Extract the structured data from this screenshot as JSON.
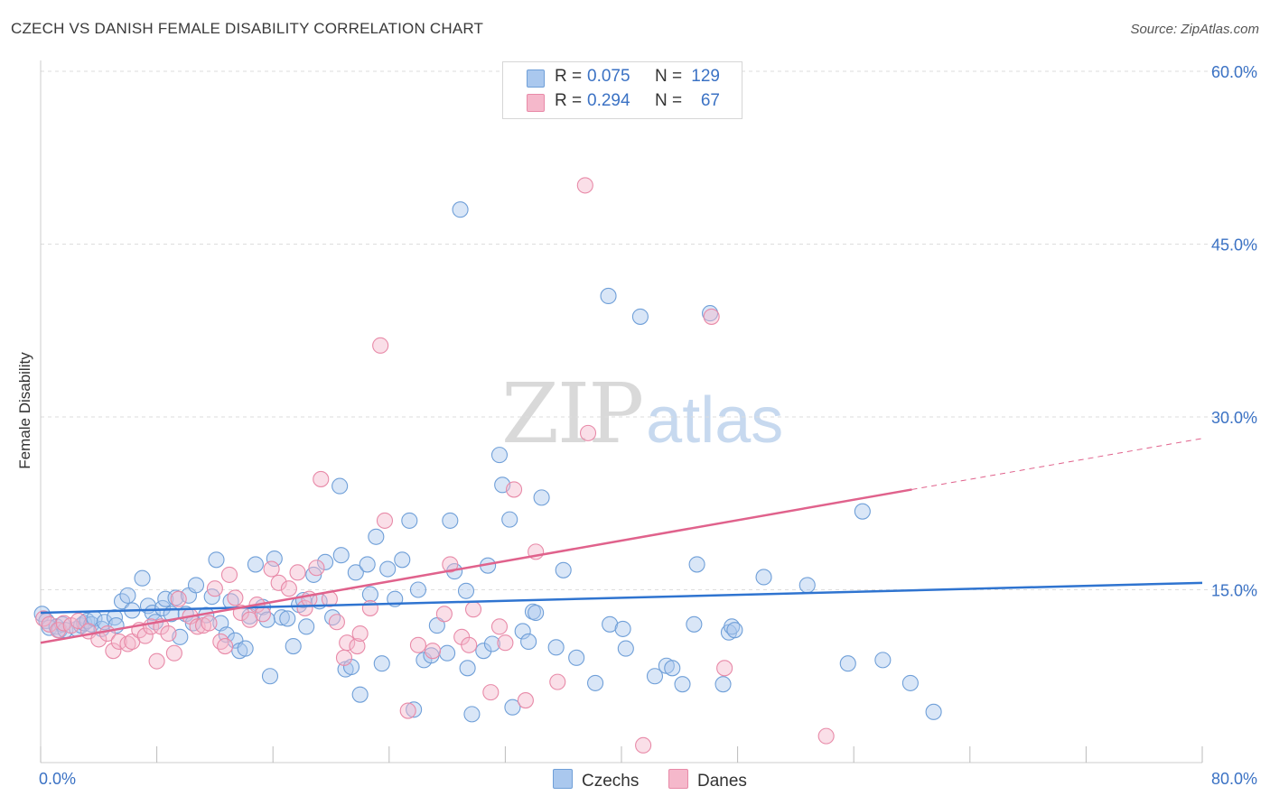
{
  "title": "CZECH VS DANISH FEMALE DISABILITY CORRELATION CHART",
  "source": "Source: ZipAtlas.com",
  "watermark": {
    "part1": "ZIP",
    "part2": "atlas"
  },
  "stats": [
    {
      "r_label": "R =",
      "r_value": "0.075",
      "n_label": "N =",
      "n_value": "129",
      "color": "#aac8ee"
    },
    {
      "r_label": "R =",
      "r_value": "0.294",
      "n_label": "N =",
      "n_value": "67",
      "color": "#f5b8cb"
    }
  ],
  "legend": [
    {
      "label": "Czechs",
      "color": "#aac8ee"
    },
    {
      "label": "Danes",
      "color": "#f5b8cb"
    }
  ],
  "colors": {
    "blue_fill": "#aac8ee",
    "blue_stroke": "#6f9fd8",
    "blue_line": "#2f74d0",
    "pink_fill": "#f5b8cb",
    "pink_stroke": "#e88aa8",
    "pink_line": "#e0628c",
    "tick_label": "#3b72c4",
    "grid": "#dddddd"
  },
  "chart_data": {
    "type": "scatter",
    "title": "CZECH VS DANISH FEMALE DISABILITY CORRELATION CHART",
    "xlabel": "",
    "ylabel": "Female Disability",
    "xlim": [
      0,
      80
    ],
    "ylim": [
      0,
      60
    ],
    "x_tick_labels": [
      {
        "value": 0,
        "label": "0.0%"
      },
      {
        "value": 80,
        "label": "80.0%"
      }
    ],
    "y_tick_labels": [
      {
        "value": 15,
        "label": "15.0%"
      },
      {
        "value": 30,
        "label": "30.0%"
      },
      {
        "value": 45,
        "label": "45.0%"
      },
      {
        "value": 60,
        "label": "60.0%"
      }
    ],
    "grid": "horizontal dashed",
    "series": [
      {
        "name": "Czechs",
        "trend": {
          "x": [
            0,
            80
          ],
          "y": [
            13.0,
            15.6
          ]
        },
        "points": [
          [
            0.1,
            12.9
          ],
          [
            0.4,
            12.3
          ],
          [
            0.6,
            11.7
          ],
          [
            1.1,
            11.8
          ],
          [
            1.3,
            11.5
          ],
          [
            1.5,
            12.0
          ],
          [
            1.7,
            11.5
          ],
          [
            2.5,
            11.6
          ],
          [
            2.8,
            11.9
          ],
          [
            3.0,
            12.1
          ],
          [
            3.2,
            12.3
          ],
          [
            3.5,
            12.0
          ],
          [
            3.7,
            12.5
          ],
          [
            4.2,
            11.6
          ],
          [
            4.4,
            12.2
          ],
          [
            5.1,
            12.6
          ],
          [
            5.2,
            11.9
          ],
          [
            5.6,
            14.0
          ],
          [
            6.0,
            14.5
          ],
          [
            6.3,
            13.2
          ],
          [
            7.0,
            16.0
          ],
          [
            7.4,
            13.6
          ],
          [
            7.7,
            13.0
          ],
          [
            7.9,
            12.2
          ],
          [
            8.4,
            13.4
          ],
          [
            8.6,
            14.2
          ],
          [
            9.0,
            12.9
          ],
          [
            9.3,
            14.3
          ],
          [
            9.6,
            10.9
          ],
          [
            10.0,
            12.9
          ],
          [
            10.2,
            14.5
          ],
          [
            10.5,
            12.1
          ],
          [
            10.7,
            15.4
          ],
          [
            11.4,
            12.8
          ],
          [
            11.8,
            14.4
          ],
          [
            12.1,
            17.6
          ],
          [
            12.4,
            12.1
          ],
          [
            12.8,
            11.1
          ],
          [
            13.1,
            14.0
          ],
          [
            13.4,
            10.6
          ],
          [
            13.7,
            9.7
          ],
          [
            14.1,
            9.9
          ],
          [
            14.4,
            12.7
          ],
          [
            14.8,
            17.2
          ],
          [
            15.3,
            13.5
          ],
          [
            15.6,
            12.4
          ],
          [
            15.8,
            7.5
          ],
          [
            16.1,
            17.7
          ],
          [
            16.6,
            12.6
          ],
          [
            17.0,
            12.5
          ],
          [
            17.4,
            10.1
          ],
          [
            17.8,
            13.7
          ],
          [
            18.1,
            14.1
          ],
          [
            18.3,
            11.8
          ],
          [
            18.8,
            16.3
          ],
          [
            19.2,
            14.0
          ],
          [
            19.6,
            17.4
          ],
          [
            20.1,
            12.6
          ],
          [
            20.6,
            24.0
          ],
          [
            20.7,
            18.0
          ],
          [
            21.0,
            8.1
          ],
          [
            21.4,
            8.3
          ],
          [
            21.7,
            16.5
          ],
          [
            22.0,
            5.9
          ],
          [
            22.5,
            17.2
          ],
          [
            22.7,
            14.6
          ],
          [
            23.1,
            19.6
          ],
          [
            23.5,
            8.6
          ],
          [
            23.9,
            16.8
          ],
          [
            24.4,
            14.2
          ],
          [
            24.9,
            17.6
          ],
          [
            25.4,
            21.0
          ],
          [
            25.7,
            4.6
          ],
          [
            26.0,
            15.0
          ],
          [
            26.4,
            8.9
          ],
          [
            26.9,
            9.3
          ],
          [
            27.3,
            11.9
          ],
          [
            28.0,
            9.5
          ],
          [
            28.2,
            21.0
          ],
          [
            28.5,
            16.6
          ],
          [
            28.9,
            48.0
          ],
          [
            29.3,
            14.9
          ],
          [
            29.4,
            8.2
          ],
          [
            29.7,
            4.2
          ],
          [
            30.5,
            9.7
          ],
          [
            30.8,
            17.1
          ],
          [
            31.1,
            10.3
          ],
          [
            31.6,
            26.7
          ],
          [
            31.8,
            24.1
          ],
          [
            32.3,
            21.1
          ],
          [
            32.5,
            4.8
          ],
          [
            33.2,
            11.4
          ],
          [
            33.6,
            10.5
          ],
          [
            33.9,
            13.1
          ],
          [
            34.1,
            13.0
          ],
          [
            34.5,
            23.0
          ],
          [
            35.5,
            10.0
          ],
          [
            36.0,
            16.7
          ],
          [
            36.9,
            9.1
          ],
          [
            38.2,
            6.9
          ],
          [
            39.1,
            40.5
          ],
          [
            39.2,
            12.0
          ],
          [
            40.1,
            11.6
          ],
          [
            40.3,
            9.9
          ],
          [
            41.3,
            38.7
          ],
          [
            42.3,
            7.5
          ],
          [
            43.1,
            8.4
          ],
          [
            43.5,
            8.2
          ],
          [
            44.2,
            6.8
          ],
          [
            45.0,
            12.0
          ],
          [
            45.2,
            17.2
          ],
          [
            46.1,
            39.0
          ],
          [
            47.0,
            6.8
          ],
          [
            47.4,
            11.3
          ],
          [
            47.6,
            11.8
          ],
          [
            47.8,
            11.5
          ],
          [
            49.8,
            16.1
          ],
          [
            52.8,
            15.4
          ],
          [
            55.6,
            8.6
          ],
          [
            56.6,
            21.8
          ],
          [
            58.0,
            8.9
          ],
          [
            59.9,
            6.9
          ],
          [
            61.5,
            4.4
          ]
        ]
      },
      {
        "name": "Danes",
        "trend": {
          "x": [
            0,
            60
          ],
          "y": [
            10.4,
            23.7
          ]
        },
        "points": [
          [
            0.2,
            12.5
          ],
          [
            0.6,
            12.0
          ],
          [
            1.2,
            11.5
          ],
          [
            1.6,
            12.1
          ],
          [
            2.1,
            11.9
          ],
          [
            2.6,
            12.3
          ],
          [
            3.3,
            11.4
          ],
          [
            4.0,
            10.7
          ],
          [
            4.6,
            11.2
          ],
          [
            5.0,
            9.7
          ],
          [
            5.4,
            10.5
          ],
          [
            6.0,
            10.3
          ],
          [
            6.3,
            10.5
          ],
          [
            6.8,
            11.5
          ],
          [
            7.2,
            11.0
          ],
          [
            7.6,
            11.8
          ],
          [
            8.0,
            8.8
          ],
          [
            8.3,
            11.8
          ],
          [
            8.8,
            11.2
          ],
          [
            9.2,
            9.5
          ],
          [
            9.5,
            14.2
          ],
          [
            10.3,
            12.7
          ],
          [
            10.8,
            11.8
          ],
          [
            11.2,
            11.9
          ],
          [
            11.6,
            12.1
          ],
          [
            12.0,
            15.1
          ],
          [
            12.4,
            10.5
          ],
          [
            12.7,
            10.1
          ],
          [
            13.0,
            16.3
          ],
          [
            13.4,
            14.3
          ],
          [
            13.8,
            13.0
          ],
          [
            14.4,
            12.4
          ],
          [
            14.9,
            13.7
          ],
          [
            15.3,
            12.9
          ],
          [
            15.9,
            16.8
          ],
          [
            16.4,
            15.6
          ],
          [
            17.1,
            15.1
          ],
          [
            17.7,
            16.5
          ],
          [
            18.2,
            13.4
          ],
          [
            18.5,
            14.2
          ],
          [
            19.0,
            16.9
          ],
          [
            19.3,
            24.6
          ],
          [
            19.9,
            14.2
          ],
          [
            20.4,
            12.2
          ],
          [
            20.9,
            9.1
          ],
          [
            21.1,
            10.4
          ],
          [
            21.8,
            10.1
          ],
          [
            22.0,
            11.2
          ],
          [
            22.7,
            13.4
          ],
          [
            23.4,
            36.2
          ],
          [
            23.7,
            21.0
          ],
          [
            25.3,
            4.5
          ],
          [
            26.0,
            10.2
          ],
          [
            27.0,
            9.7
          ],
          [
            27.8,
            12.9
          ],
          [
            28.2,
            17.2
          ],
          [
            29.0,
            10.9
          ],
          [
            29.5,
            10.2
          ],
          [
            29.8,
            13.3
          ],
          [
            31.0,
            6.1
          ],
          [
            31.6,
            11.8
          ],
          [
            32.0,
            10.4
          ],
          [
            32.6,
            23.7
          ],
          [
            33.4,
            5.4
          ],
          [
            34.1,
            18.3
          ],
          [
            35.6,
            7.0
          ],
          [
            37.5,
            50.1
          ],
          [
            37.7,
            28.6
          ],
          [
            41.5,
            1.5
          ],
          [
            46.2,
            38.7
          ],
          [
            47.1,
            8.2
          ],
          [
            54.1,
            2.3
          ]
        ]
      }
    ]
  }
}
